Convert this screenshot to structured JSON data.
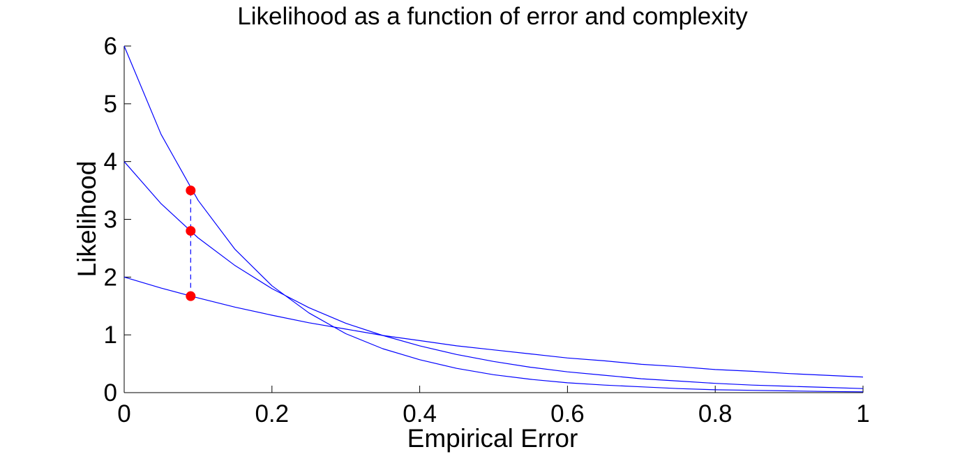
{
  "chart_data": {
    "type": "line",
    "title": "Likelihood as a function of error and complexity",
    "xlabel": "Empirical Error",
    "ylabel": "Likelihood",
    "xlim": [
      0,
      1
    ],
    "ylim": [
      0,
      6
    ],
    "xticks": [
      "0",
      "0.2",
      "0.4",
      "0.6",
      "0.8",
      "1"
    ],
    "yticks": [
      "0",
      "1",
      "2",
      "3",
      "4",
      "5",
      "6"
    ],
    "grid": false,
    "legend": "none",
    "series": [
      {
        "color": "#0000ff",
        "x": [
          0,
          0.05,
          0.1,
          0.15,
          0.2,
          0.25,
          0.3,
          0.35,
          0.4,
          0.45,
          0.5,
          0.55,
          0.6,
          0.65,
          0.7,
          0.75,
          0.8,
          0.85,
          0.9,
          0.95,
          1.0
        ],
        "y": [
          6.0,
          4.47,
          3.33,
          2.48,
          1.85,
          1.38,
          1.02,
          0.76,
          0.57,
          0.42,
          0.31,
          0.23,
          0.17,
          0.13,
          0.1,
          0.07,
          0.05,
          0.04,
          0.03,
          0.02,
          0.015
        ]
      },
      {
        "color": "#0000ff",
        "x": [
          0,
          0.05,
          0.1,
          0.15,
          0.2,
          0.25,
          0.3,
          0.35,
          0.4,
          0.45,
          0.5,
          0.55,
          0.6,
          0.65,
          0.7,
          0.75,
          0.8,
          0.85,
          0.9,
          0.95,
          1.0
        ],
        "y": [
          4.0,
          3.27,
          2.68,
          2.2,
          1.8,
          1.47,
          1.2,
          0.99,
          0.81,
          0.66,
          0.54,
          0.44,
          0.36,
          0.3,
          0.24,
          0.2,
          0.16,
          0.13,
          0.11,
          0.09,
          0.07
        ]
      },
      {
        "color": "#0000ff",
        "x": [
          0,
          0.05,
          0.1,
          0.15,
          0.2,
          0.25,
          0.3,
          0.35,
          0.4,
          0.45,
          0.5,
          0.55,
          0.6,
          0.65,
          0.7,
          0.75,
          0.8,
          0.85,
          0.9,
          0.95,
          1.0
        ],
        "y": [
          2.0,
          1.81,
          1.64,
          1.48,
          1.34,
          1.21,
          1.1,
          0.99,
          0.9,
          0.81,
          0.74,
          0.67,
          0.6,
          0.55,
          0.49,
          0.45,
          0.4,
          0.37,
          0.33,
          0.3,
          0.27
        ]
      }
    ],
    "markers": {
      "color": "#ff0000",
      "x": [
        0.09,
        0.09,
        0.09
      ],
      "y": [
        3.5,
        2.8,
        1.67
      ]
    },
    "connector": {
      "color": "#0000ff",
      "style": "dashed",
      "x": [
        0.09,
        0.09
      ],
      "y": [
        1.67,
        3.5
      ]
    }
  }
}
